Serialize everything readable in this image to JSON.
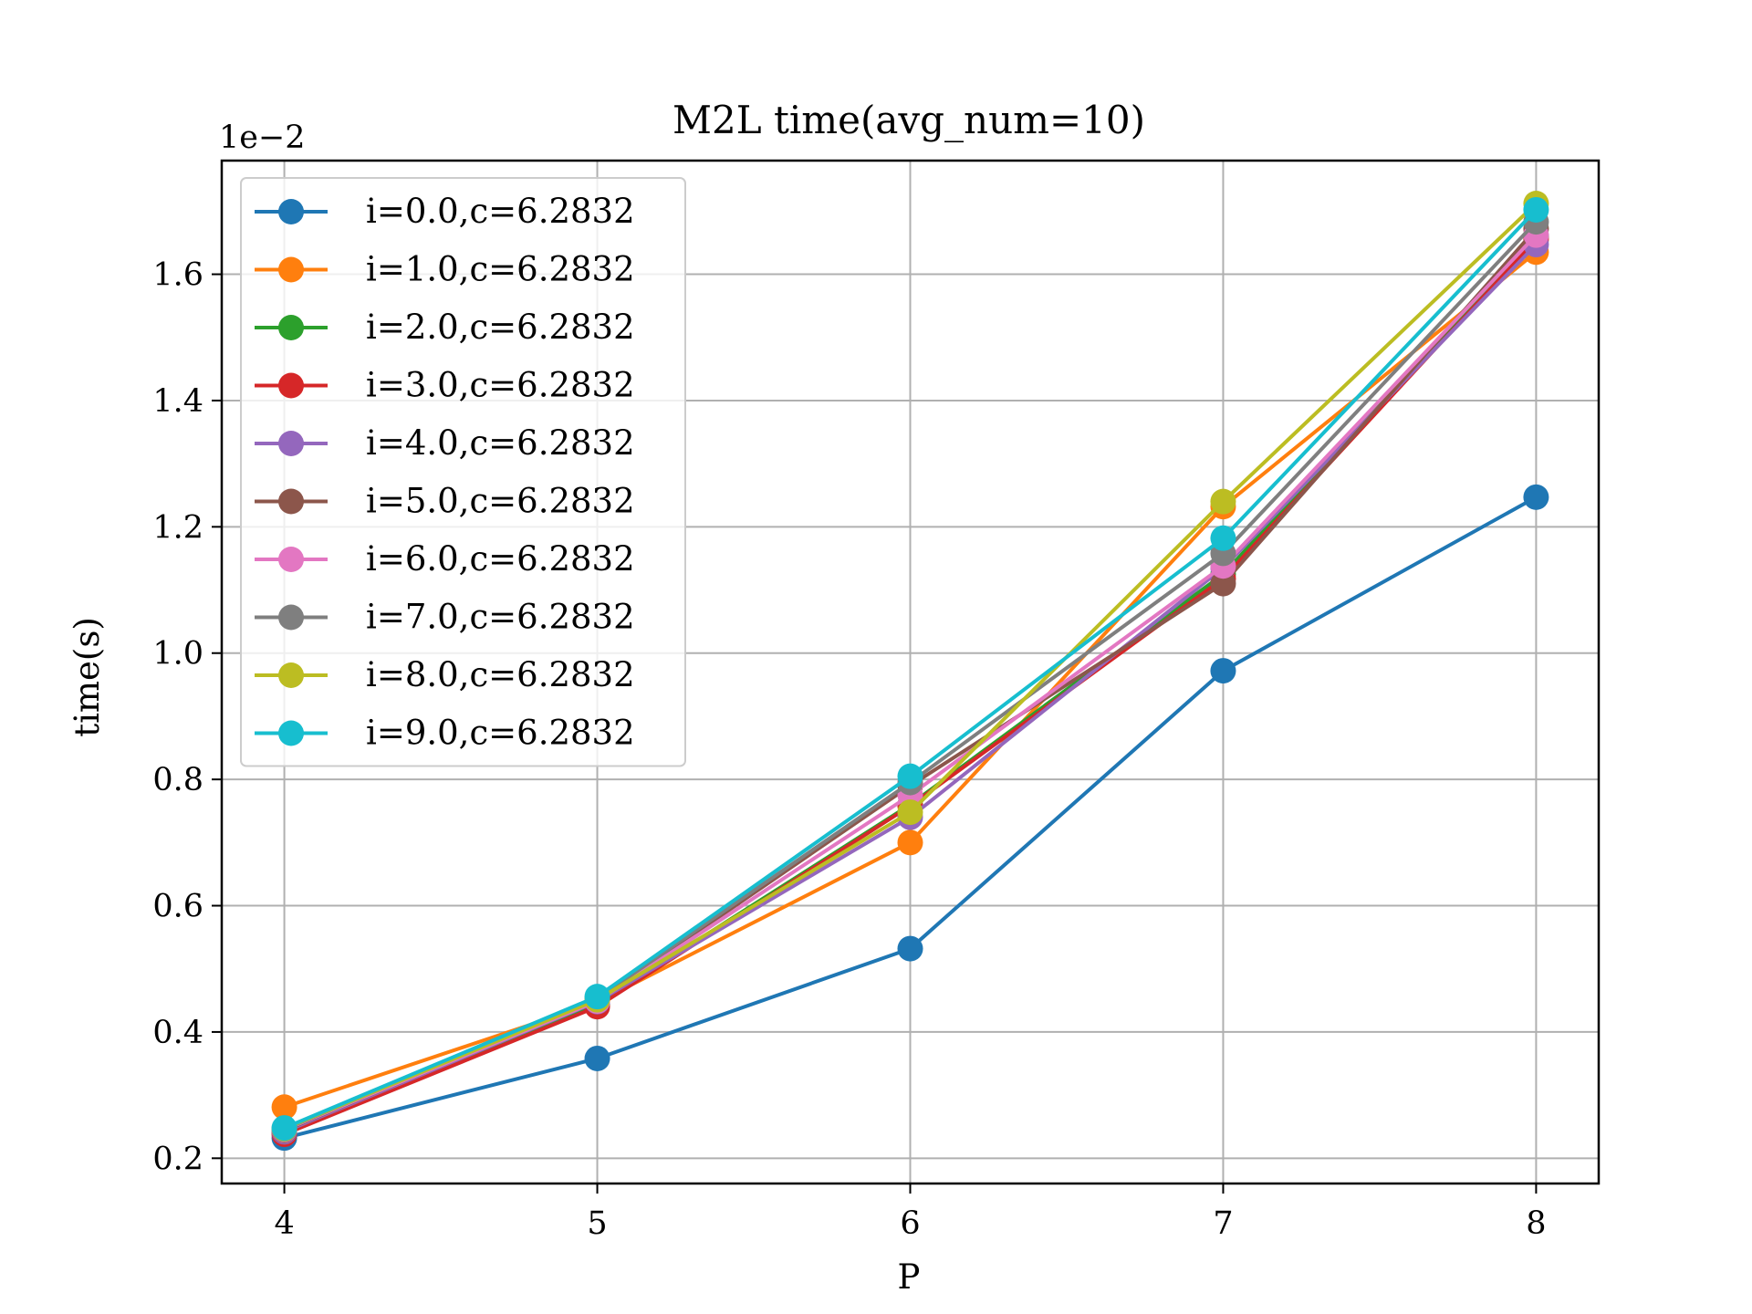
{
  "chart_data": {
    "type": "line",
    "title": "M2L time(avg_num=10)",
    "xlabel": "P",
    "ylabel": "time(s)",
    "y_offset_label": "1e−2",
    "x": [
      4,
      5,
      6,
      7,
      8
    ],
    "xlim": [
      3.8,
      8.2
    ],
    "ylim": [
      0.16,
      1.78
    ],
    "xticks": [
      4,
      5,
      6,
      7,
      8
    ],
    "yticks": [
      0.2,
      0.4,
      0.6,
      0.8,
      1.0,
      1.2,
      1.4,
      1.6
    ],
    "grid": true,
    "legend_position": "upper-left",
    "series": [
      {
        "name": "i=0.0,c=6.2832",
        "color": "#1f77b4",
        "values": [
          0.232,
          0.358,
          0.532,
          0.972,
          1.247
        ]
      },
      {
        "name": "i=1.0,c=6.2832",
        "color": "#ff7f0e",
        "values": [
          0.281,
          0.447,
          0.7,
          1.232,
          1.635
        ]
      },
      {
        "name": "i=2.0,c=6.2832",
        "color": "#2ca02c",
        "values": [
          0.24,
          0.444,
          0.76,
          1.125,
          1.66
        ]
      },
      {
        "name": "i=3.0,c=6.2832",
        "color": "#d62728",
        "values": [
          0.238,
          0.44,
          0.758,
          1.118,
          1.655
        ]
      },
      {
        "name": "i=4.0,c=6.2832",
        "color": "#9467bd",
        "values": [
          0.242,
          0.448,
          0.74,
          1.135,
          1.647
        ]
      },
      {
        "name": "i=5.0,c=6.2832",
        "color": "#8c564b",
        "values": [
          0.244,
          0.45,
          0.79,
          1.11,
          1.672
        ]
      },
      {
        "name": "i=6.0,c=6.2832",
        "color": "#e377c2",
        "values": [
          0.245,
          0.449,
          0.775,
          1.138,
          1.662
        ]
      },
      {
        "name": "i=7.0,c=6.2832",
        "color": "#7f7f7f",
        "values": [
          0.246,
          0.453,
          0.795,
          1.158,
          1.683
        ]
      },
      {
        "name": "i=8.0,c=6.2832",
        "color": "#bcbd22",
        "values": [
          0.247,
          0.451,
          0.748,
          1.24,
          1.712
        ]
      },
      {
        "name": "i=9.0,c=6.2832",
        "color": "#17becf",
        "values": [
          0.248,
          0.456,
          0.805,
          1.182,
          1.702
        ]
      }
    ]
  }
}
